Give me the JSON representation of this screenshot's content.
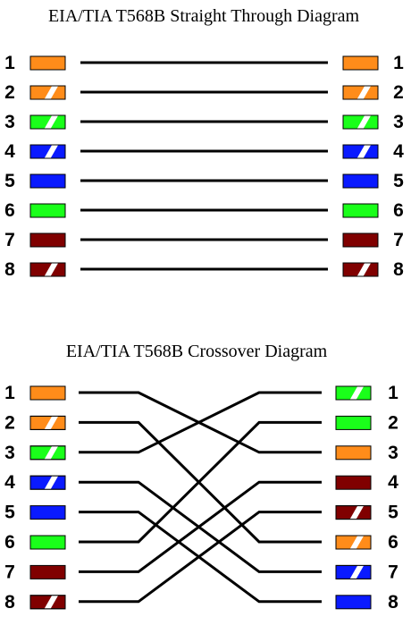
{
  "colors": {
    "orange": "#ff8c1a",
    "green": "#1aff1a",
    "blue": "#0a1aff",
    "brown": "#800000",
    "white": "#ffffff"
  },
  "straight": {
    "title": "EIA/TIA T568B Straight Through Diagram",
    "pins": [
      {
        "label": "1",
        "left": {
          "color": "orange",
          "striped": false
        },
        "right": {
          "color": "orange",
          "striped": false
        }
      },
      {
        "label": "2",
        "left": {
          "color": "orange",
          "striped": true
        },
        "right": {
          "color": "orange",
          "striped": true
        }
      },
      {
        "label": "3",
        "left": {
          "color": "green",
          "striped": true
        },
        "right": {
          "color": "green",
          "striped": true
        }
      },
      {
        "label": "4",
        "left": {
          "color": "blue",
          "striped": true
        },
        "right": {
          "color": "blue",
          "striped": true
        }
      },
      {
        "label": "5",
        "left": {
          "color": "blue",
          "striped": false
        },
        "right": {
          "color": "blue",
          "striped": false
        }
      },
      {
        "label": "6",
        "left": {
          "color": "green",
          "striped": false
        },
        "right": {
          "color": "green",
          "striped": false
        }
      },
      {
        "label": "7",
        "left": {
          "color": "brown",
          "striped": false
        },
        "right": {
          "color": "brown",
          "striped": false
        }
      },
      {
        "label": "8",
        "left": {
          "color": "brown",
          "striped": true
        },
        "right": {
          "color": "brown",
          "striped": true
        }
      }
    ],
    "mapping": [
      1,
      2,
      3,
      4,
      5,
      6,
      7,
      8
    ]
  },
  "crossover": {
    "title": "EIA/TIA T568B Crossover Diagram",
    "pins": [
      {
        "label": "1",
        "left": {
          "color": "orange",
          "striped": false
        },
        "right": {
          "color": "green",
          "striped": true
        }
      },
      {
        "label": "2",
        "left": {
          "color": "orange",
          "striped": true
        },
        "right": {
          "color": "green",
          "striped": false
        }
      },
      {
        "label": "3",
        "left": {
          "color": "green",
          "striped": true
        },
        "right": {
          "color": "orange",
          "striped": false
        }
      },
      {
        "label": "4",
        "left": {
          "color": "blue",
          "striped": true
        },
        "right": {
          "color": "brown",
          "striped": false
        }
      },
      {
        "label": "5",
        "left": {
          "color": "blue",
          "striped": false
        },
        "right": {
          "color": "brown",
          "striped": true
        }
      },
      {
        "label": "6",
        "left": {
          "color": "green",
          "striped": false
        },
        "right": {
          "color": "orange",
          "striped": true
        }
      },
      {
        "label": "7",
        "left": {
          "color": "brown",
          "striped": false
        },
        "right": {
          "color": "blue",
          "striped": true
        }
      },
      {
        "label": "8",
        "left": {
          "color": "brown",
          "striped": true
        },
        "right": {
          "color": "blue",
          "striped": false
        }
      }
    ],
    "mapping": [
      3,
      6,
      1,
      7,
      8,
      2,
      4,
      5
    ]
  }
}
